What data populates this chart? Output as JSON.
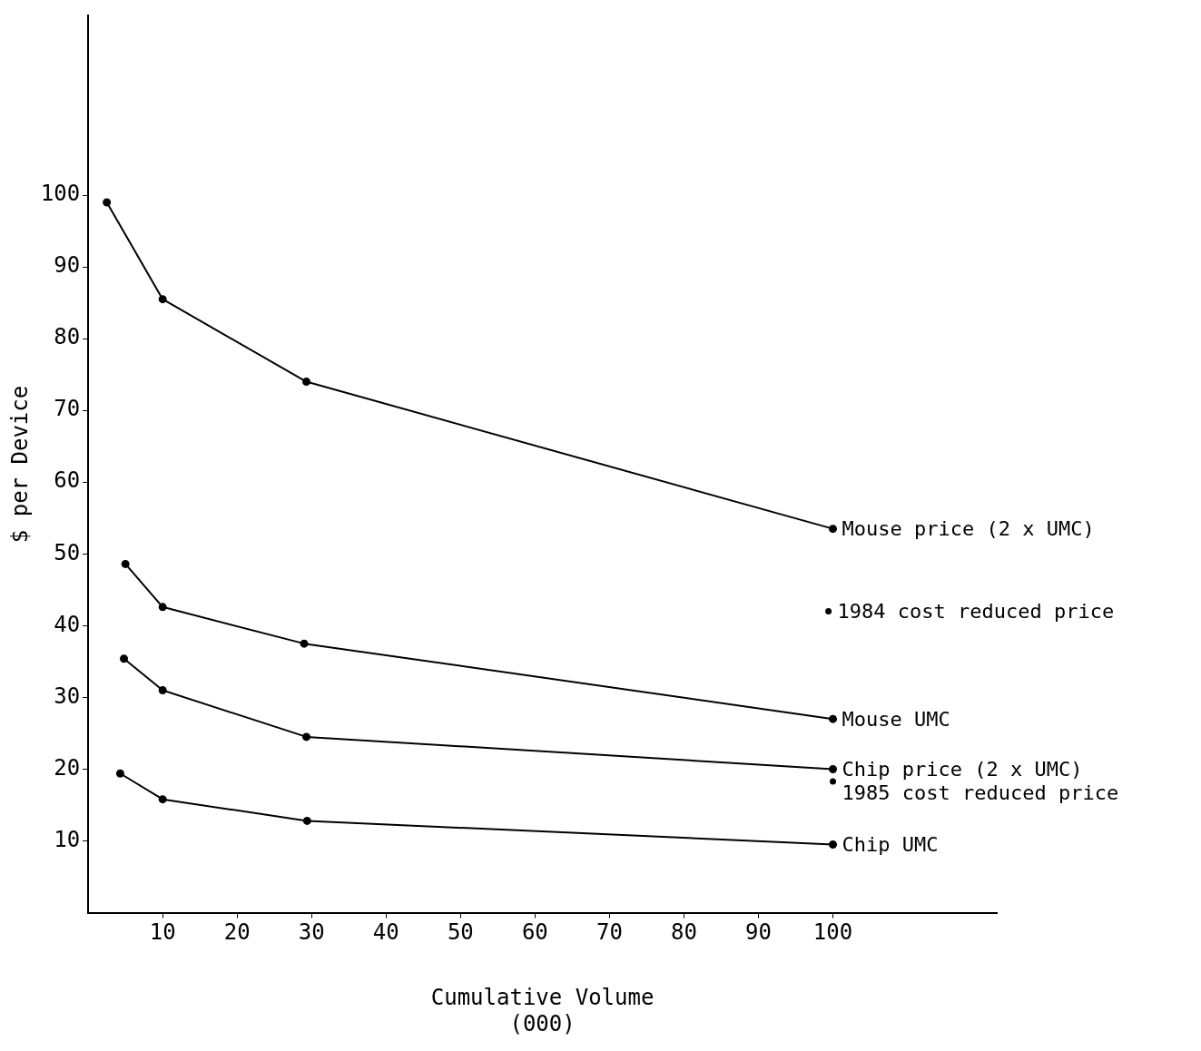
{
  "chart_data": {
    "type": "line",
    "xlabel": "Cumulative Volume\n(000)",
    "ylabel": "$ per Device",
    "xlim": [
      0,
      122
    ],
    "xticks": [
      10,
      20,
      30,
      40,
      50,
      60,
      70,
      80,
      90,
      100
    ],
    "ylim": [
      0,
      125
    ],
    "yticks": [
      10,
      20,
      30,
      40,
      50,
      60,
      70,
      80,
      90,
      100
    ],
    "grid": false,
    "legend": false,
    "marker": "circle",
    "line_style": "solid",
    "series": [
      {
        "name": "Mouse price (2 x UMC)",
        "color": "#000000",
        "x": [
          2.5,
          10,
          29.3,
          100
        ],
        "values": [
          99,
          85.5,
          74,
          53.5
        ]
      },
      {
        "name": "Mouse UMC",
        "color": "#000000",
        "x": [
          5,
          10,
          29,
          100
        ],
        "values": [
          48.6,
          42.6,
          37.5,
          27
        ]
      },
      {
        "name": "Chip price (2 x UMC)",
        "color": "#000000",
        "x": [
          4.8,
          10,
          29.3,
          100
        ],
        "values": [
          35.4,
          31,
          24.5,
          20
        ]
      },
      {
        "name": "Chip UMC",
        "color": "#000000",
        "x": [
          4.3,
          10,
          29.4,
          100
        ],
        "values": [
          19.4,
          15.8,
          12.8,
          9.5
        ]
      },
      {
        "type": "scatter",
        "name": "1984 cost reduced price",
        "color": "#000000",
        "x": [
          99.4
        ],
        "values": [
          42
        ]
      },
      {
        "type": "scatter",
        "name": "1985 cost reduced price",
        "color": "#000000",
        "x": [
          100
        ],
        "values": [
          18.3
        ]
      }
    ]
  }
}
